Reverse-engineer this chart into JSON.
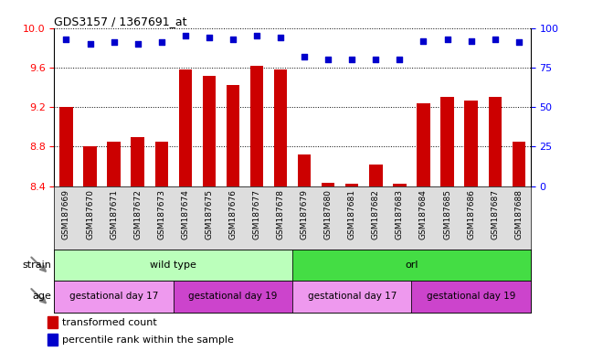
{
  "title": "GDS3157 / 1367691_at",
  "samples": [
    "GSM187669",
    "GSM187670",
    "GSM187671",
    "GSM187672",
    "GSM187673",
    "GSM187674",
    "GSM187675",
    "GSM187676",
    "GSM187677",
    "GSM187678",
    "GSM187679",
    "GSM187680",
    "GSM187681",
    "GSM187682",
    "GSM187683",
    "GSM187684",
    "GSM187685",
    "GSM187686",
    "GSM187687",
    "GSM187688"
  ],
  "transformed_count": [
    9.2,
    8.8,
    8.85,
    8.9,
    8.85,
    9.58,
    9.52,
    9.42,
    9.62,
    9.58,
    8.72,
    8.43,
    8.42,
    8.62,
    8.42,
    9.24,
    9.3,
    9.27,
    9.3,
    8.85
  ],
  "percentile_rank": [
    93,
    90,
    91,
    90,
    91,
    95,
    94,
    93,
    95,
    94,
    82,
    80,
    80,
    80,
    80,
    92,
    93,
    92,
    93,
    91
  ],
  "ylim_left": [
    8.4,
    10.0
  ],
  "ylim_right": [
    0,
    100
  ],
  "yticks_left": [
    8.4,
    8.8,
    9.2,
    9.6,
    10.0
  ],
  "yticks_right": [
    0,
    25,
    50,
    75,
    100
  ],
  "bar_color": "#cc0000",
  "dot_color": "#0000cc",
  "bar_baseline": 8.4,
  "strain_groups": [
    {
      "label": "wild type",
      "start": 0,
      "end": 10,
      "color": "#bbffbb"
    },
    {
      "label": "orl",
      "start": 10,
      "end": 20,
      "color": "#44dd44"
    }
  ],
  "age_groups": [
    {
      "label": "gestational day 17",
      "start": 0,
      "end": 5,
      "color": "#ee99ee"
    },
    {
      "label": "gestational day 19",
      "start": 5,
      "end": 10,
      "color": "#cc44cc"
    },
    {
      "label": "gestational day 17",
      "start": 10,
      "end": 15,
      "color": "#ee99ee"
    },
    {
      "label": "gestational day 19",
      "start": 15,
      "end": 20,
      "color": "#cc44cc"
    }
  ],
  "legend_items": [
    {
      "label": "transformed count",
      "color": "#cc0000"
    },
    {
      "label": "percentile rank within the sample",
      "color": "#0000cc"
    }
  ],
  "strain_label": "strain",
  "age_label": "age",
  "tick_label_bg": "#dddddd"
}
